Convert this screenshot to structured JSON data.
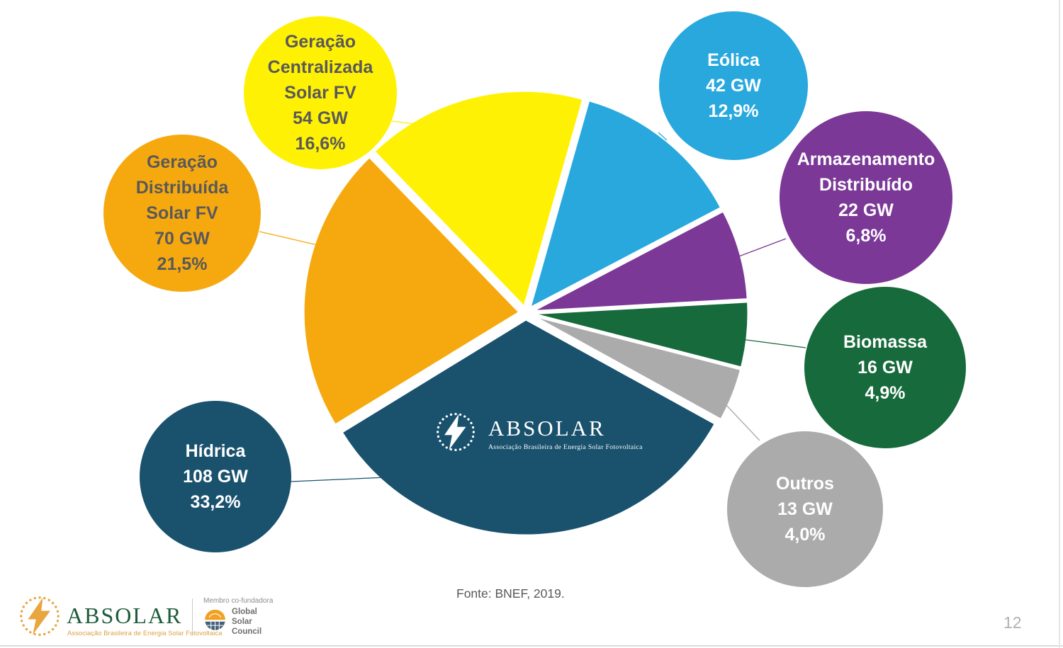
{
  "page": {
    "number": "12",
    "source_note": "Fonte: BNEF, 2019."
  },
  "center_logo": {
    "wordmark": "ABSOLAR",
    "tagline": "Associação Brasileira de Energia Solar Fotovoltaica"
  },
  "footer": {
    "absolar": {
      "wordmark": "ABSOLAR",
      "tagline": "Associação Brasileira de Energia Solar Fotovoltaica"
    },
    "membership": {
      "label": "Membro co-fundadora",
      "org_lines": "Global\nSolar\nCouncil"
    }
  },
  "chart_data": {
    "type": "pie",
    "unit": "GW",
    "start_angle_deg": -44,
    "legend_position": "callout-bubbles",
    "source": "Fonte: BNEF, 2019.",
    "slices": [
      {
        "id": "geracao-centralizada-solar-fv",
        "label": "Geração\nCentralizada\nSolar FV",
        "gw_label": "54 GW",
        "pct_label": "16,6%",
        "value_gw": 54,
        "percent": 16.6,
        "color": "#FFF104",
        "text_color": "#595959"
      },
      {
        "id": "eolica",
        "label": "Eólica",
        "gw_label": "42 GW",
        "pct_label": "12,9%",
        "value_gw": 42,
        "percent": 12.9,
        "color": "#29A8DE",
        "text_color": "#FFFFFF"
      },
      {
        "id": "armazenamento-distribuido",
        "label": "Armazenamento\nDistribuído",
        "gw_label": "22 GW",
        "pct_label": "6,8%",
        "value_gw": 22,
        "percent": 6.8,
        "color": "#7B3897",
        "text_color": "#FFFFFF"
      },
      {
        "id": "biomassa",
        "label": "Biomassa",
        "gw_label": "16 GW",
        "pct_label": "4,9%",
        "value_gw": 16,
        "percent": 4.9,
        "color": "#176A3B",
        "text_color": "#FFFFFF"
      },
      {
        "id": "outros",
        "label": "Outros",
        "gw_label": "13 GW",
        "pct_label": "4,0%",
        "value_gw": 13,
        "percent": 4.0,
        "color": "#ABABAB",
        "text_color": "#FFFFFF"
      },
      {
        "id": "hidrica",
        "label": "Hídrica",
        "gw_label": "108 GW",
        "pct_label": "33,2%",
        "value_gw": 108,
        "percent": 33.2,
        "color": "#1A526E",
        "text_color": "#FFFFFF"
      },
      {
        "id": "geracao-distribuida-solar-fv",
        "label": "Geração\nDistribuída\nSolar FV",
        "gw_label": "70 GW",
        "pct_label": "21,5%",
        "value_gw": 70,
        "percent": 21.5,
        "color": "#F6A90F",
        "text_color": "#595959"
      }
    ]
  }
}
